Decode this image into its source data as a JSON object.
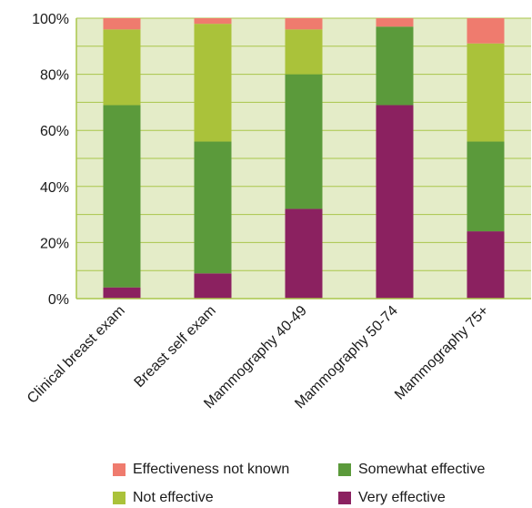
{
  "chart_data": {
    "type": "bar",
    "stacked": true,
    "percent": true,
    "title": "",
    "xlabel": "",
    "ylabel": "",
    "ylim": [
      0,
      100
    ],
    "yticks": [
      "0%",
      "20%",
      "40%",
      "60%",
      "80%",
      "100%"
    ],
    "grid": true,
    "legend_position": "bottom",
    "categories": [
      "Clinical breast exam",
      "Breast self exam",
      "Mammography 40-49",
      "Mammography 50-74",
      "Mammography 75+"
    ],
    "series": [
      {
        "name": "Very effective",
        "color": "#8b2160",
        "values": [
          4,
          9,
          32,
          69,
          24
        ]
      },
      {
        "name": "Somewhat effective",
        "color": "#5b9a3b",
        "values": [
          65,
          47,
          48,
          28,
          32
        ]
      },
      {
        "name": "Not effective",
        "color": "#aac23a",
        "values": [
          27,
          42,
          16,
          0,
          35
        ]
      },
      {
        "name": "Effectiveness not known",
        "color": "#ef7b6e",
        "values": [
          4,
          2,
          4,
          3,
          9
        ]
      }
    ],
    "legend_order": [
      "Effectiveness not known",
      "Somewhat effective",
      "Not effective",
      "Very effective"
    ],
    "plot_background": "#e4ecc8",
    "grid_color": "#a9c64a"
  }
}
